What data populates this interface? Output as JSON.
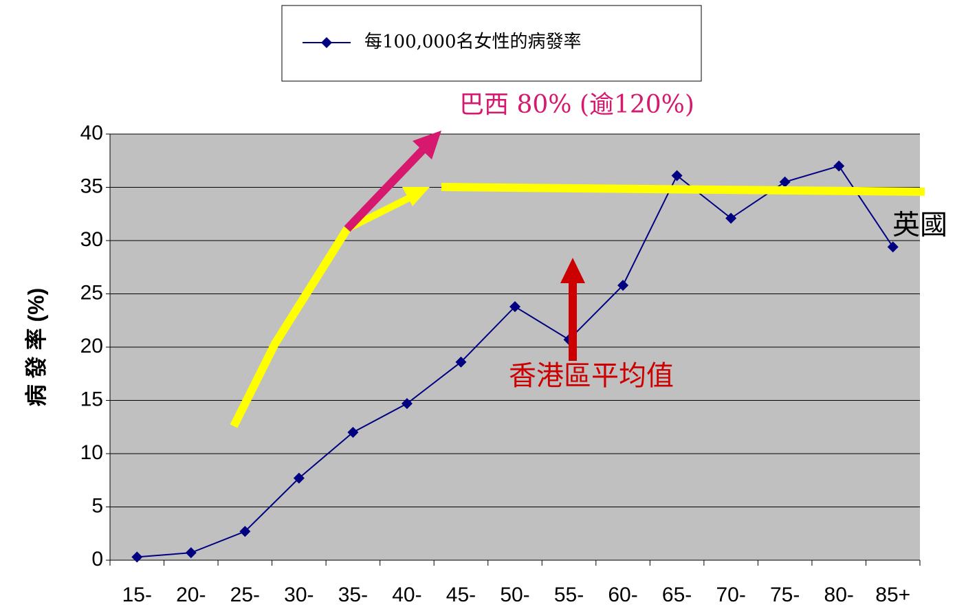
{
  "chart_data": {
    "type": "line",
    "y_label": "病 發 率 (%)",
    "categories": [
      "15-",
      "20-",
      "25-",
      "30-",
      "35-",
      "40-",
      "45-",
      "50-",
      "55-",
      "60-",
      "65-",
      "70-",
      "75-",
      "80-",
      "85+"
    ],
    "series": [
      {
        "name": "每100,000名女性的病發率",
        "color": "#000080",
        "values": [
          0.3,
          0.7,
          2.7,
          7.7,
          12.0,
          14.7,
          18.6,
          23.8,
          20.7,
          25.8,
          36.1,
          32.1,
          35.5,
          37.0,
          29.4
        ]
      }
    ],
    "ylim": [
      0,
      40
    ],
    "yticks": [
      0,
      5,
      10,
      15,
      20,
      25,
      30,
      35,
      40
    ],
    "grid": true,
    "annotations": [
      "巴西 80% (逾120%)",
      "香港區平均值",
      "英國"
    ]
  }
}
